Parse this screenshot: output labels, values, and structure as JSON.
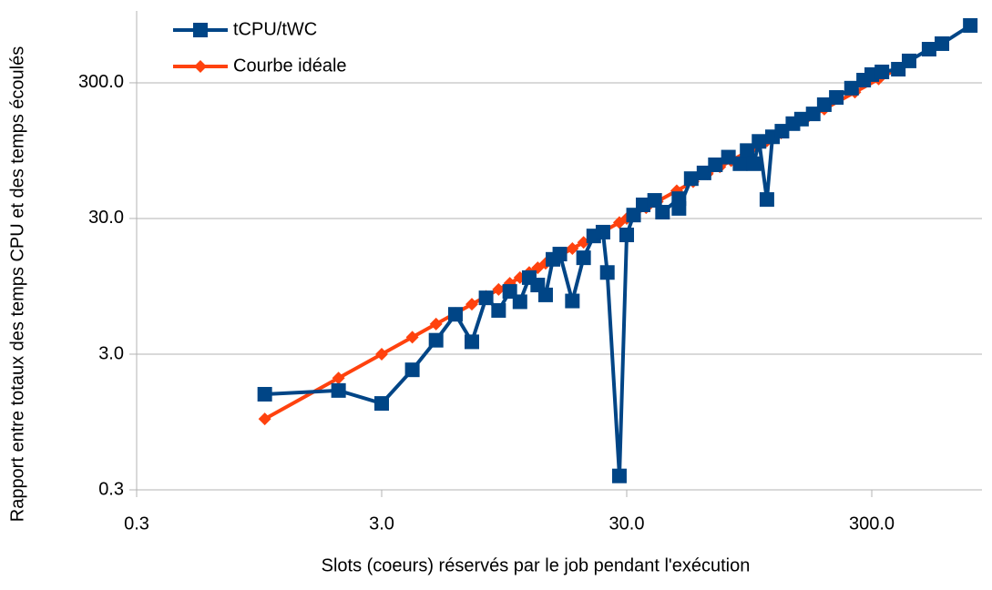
{
  "chart_data": {
    "type": "line",
    "xlabel": "Slots (coeurs) réservés par le job pendant l'exécution",
    "ylabel": "Rapport entre totaux  des temps CPU et des temps écoulés",
    "xscale": "log",
    "yscale": "log",
    "xlim": [
      0.3,
      845
    ],
    "ylim": [
      0.3,
      1016
    ],
    "xticks": [
      0.3,
      {
        "value": 3,
        "label": "3.0"
      },
      {
        "value": 30,
        "label": "30.0"
      },
      {
        "value": 300,
        "label": "300.0"
      }
    ],
    "yticks": [
      0.3,
      {
        "value": 3,
        "label": "3.0"
      },
      {
        "value": 30,
        "label": "30.0"
      },
      {
        "value": 300,
        "label": "300.0"
      }
    ],
    "grid": true,
    "legend": "upper left",
    "series": [
      {
        "name": "tCPU/tWC",
        "color": "#004586",
        "marker": "square",
        "x": [
          1,
          2,
          3,
          4,
          5,
          6,
          7,
          8,
          9,
          10,
          11,
          12,
          13,
          14,
          15,
          16,
          18,
          20,
          22,
          24,
          25,
          28,
          30,
          32,
          35,
          39,
          42,
          49,
          49,
          55,
          62,
          69,
          78,
          87,
          93,
          99,
          104,
          112,
          118,
          129,
          143,
          155,
          173,
          192,
          215,
          248,
          278,
          300,
          330,
          385,
          426,
          514,
          580,
          757
        ],
        "values": [
          1.52,
          1.62,
          1.3,
          2.3,
          3.8,
          5.9,
          3.7,
          7.8,
          6.3,
          8.7,
          7.3,
          11,
          9.7,
          8.2,
          15,
          16.4,
          7.4,
          15.4,
          22.3,
          23.8,
          12,
          0.38,
          22.7,
          31.8,
          37.8,
          40.8,
          33.4,
          42,
          35.6,
          59,
          65,
          74.6,
          85,
          76,
          95,
          76,
          111,
          41.4,
          120,
          132,
          150,
          162,
          177,
          207,
          234,
          274,
          314,
          345,
          361,
          378,
          435,
          531,
          583,
          794
        ]
      },
      {
        "name": "Courbe idéale",
        "color": "#ff420e",
        "marker": "diamond",
        "x": [
          1,
          2,
          3,
          4,
          5,
          6,
          7,
          8,
          9,
          10,
          11,
          12,
          13,
          14,
          15,
          16,
          18,
          20,
          22,
          24,
          28,
          30,
          32,
          36,
          40,
          48,
          56,
          64,
          72,
          80,
          96,
          112,
          128,
          160,
          192,
          256,
          320,
          384
        ],
        "values": [
          1,
          2,
          3,
          4,
          5,
          6,
          7,
          8,
          9,
          10,
          11,
          12,
          13,
          14,
          15,
          16,
          18,
          20,
          22,
          24,
          28,
          30,
          32,
          36,
          40,
          48,
          56,
          64,
          72,
          80,
          96,
          112,
          128,
          160,
          192,
          256,
          320,
          384
        ]
      }
    ]
  }
}
